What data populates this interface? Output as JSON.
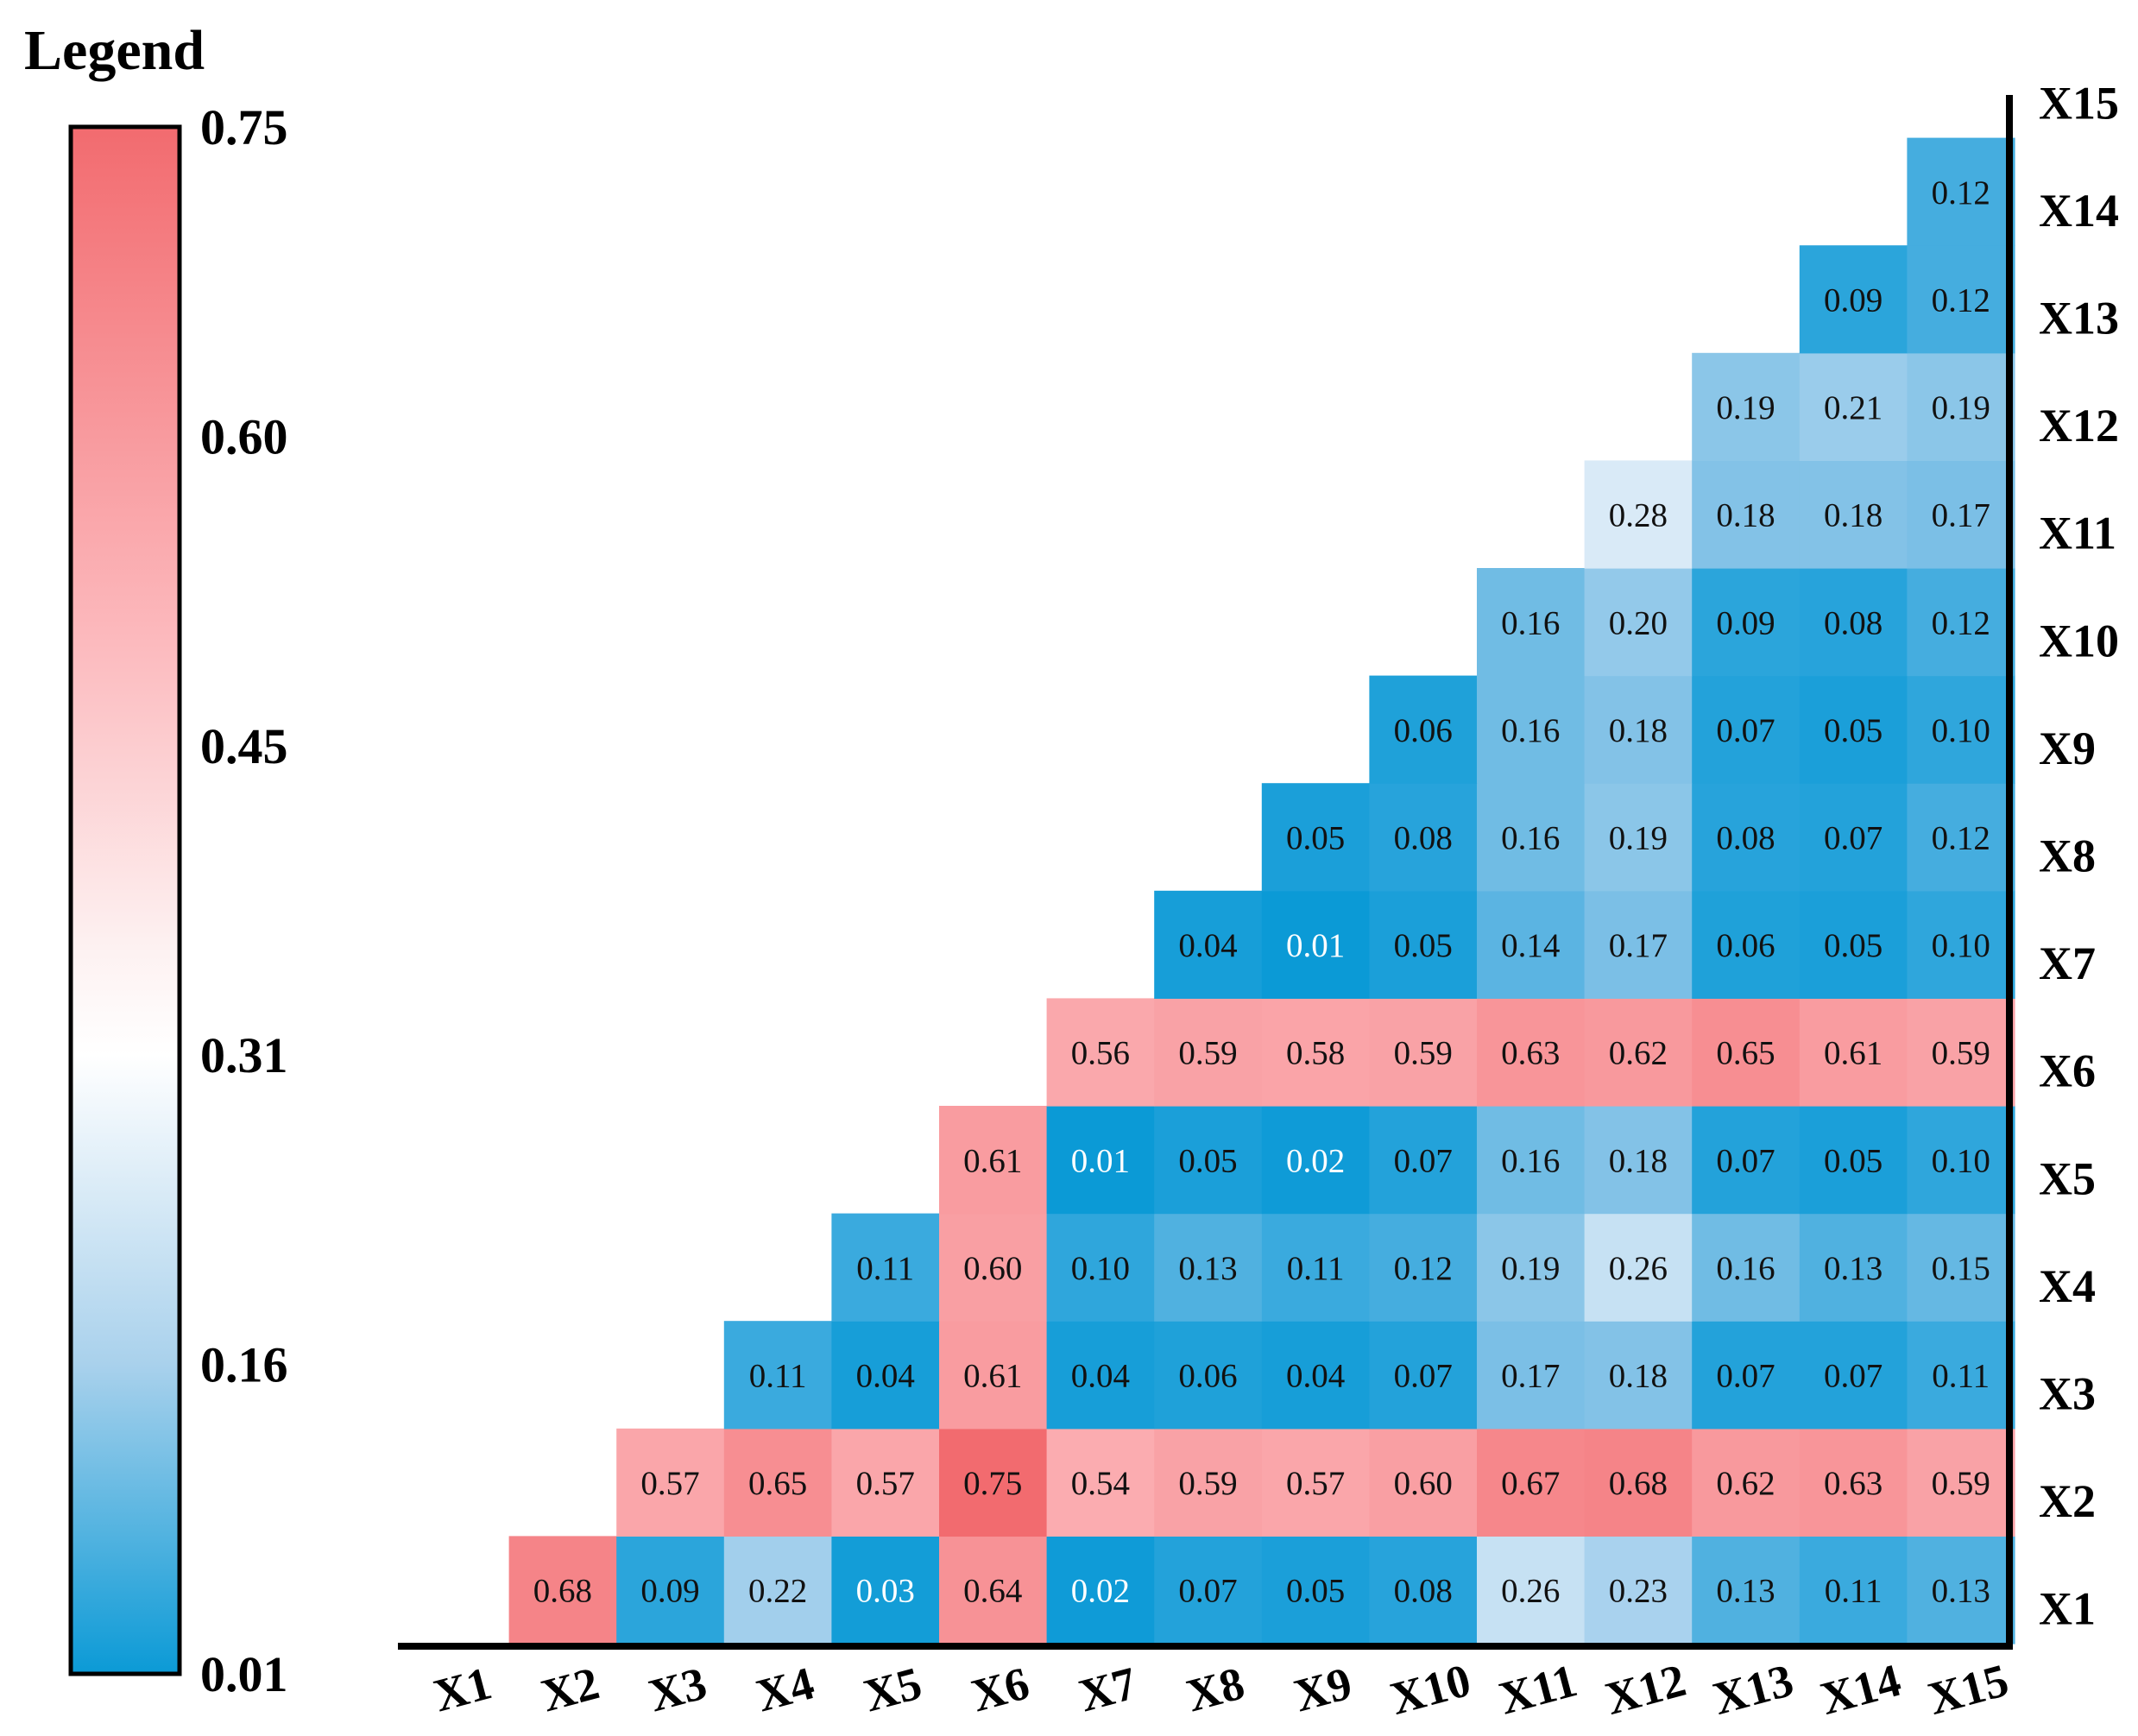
{
  "chart_data": {
    "type": "heatmap",
    "subtype": "lower-triangular interaction matrix",
    "legend_title": "Legend",
    "legend_ticks": [
      "0.75",
      "0.60",
      "0.45",
      "0.31",
      "0.16",
      "0.01"
    ],
    "value_range": [
      0.01,
      0.75
    ],
    "colors": {
      "low": "#0b9ad6",
      "mid": "#ffffff",
      "high": "#f26b6f"
    },
    "x_labels": [
      "X1",
      "X2",
      "X3",
      "X4",
      "X5",
      "X6",
      "X7",
      "X8",
      "X9",
      "X10",
      "X11",
      "X12",
      "X13",
      "X14",
      "X15"
    ],
    "y_labels": [
      "X15",
      "X14",
      "X13",
      "X12",
      "X11",
      "X10",
      "X9",
      "X8",
      "X7",
      "X6",
      "X5",
      "X4",
      "X3",
      "X2",
      "X1"
    ],
    "rows": [
      {
        "row": "X1",
        "values": [
          null,
          "0.68",
          "0.09",
          "0.22",
          "0.03",
          "0.64",
          "0.02",
          "0.07",
          "0.05",
          "0.08",
          "0.26",
          "0.23",
          "0.13",
          "0.11",
          "0.13"
        ]
      },
      {
        "row": "X2",
        "values": [
          null,
          null,
          "0.57",
          "0.65",
          "0.57",
          "0.75",
          "0.54",
          "0.59",
          "0.57",
          "0.60",
          "0.67",
          "0.68",
          "0.62",
          "0.63",
          "0.59"
        ]
      },
      {
        "row": "X3",
        "values": [
          null,
          null,
          null,
          "0.11",
          "0.04",
          "0.61",
          "0.04",
          "0.06",
          "0.04",
          "0.07",
          "0.17",
          "0.18",
          "0.07",
          "0.07",
          "0.11"
        ]
      },
      {
        "row": "X4",
        "values": [
          null,
          null,
          null,
          null,
          "0.11",
          "0.60",
          "0.10",
          "0.13",
          "0.11",
          "0.12",
          "0.19",
          "0.26",
          "0.16",
          "0.13",
          "0.15"
        ]
      },
      {
        "row": "X5",
        "values": [
          null,
          null,
          null,
          null,
          null,
          "0.61",
          "0.01",
          "0.05",
          "0.02",
          "0.07",
          "0.16",
          "0.18",
          "0.07",
          "0.05",
          "0.10"
        ]
      },
      {
        "row": "X6",
        "values": [
          null,
          null,
          null,
          null,
          null,
          null,
          "0.56",
          "0.59",
          "0.58",
          "0.59",
          "0.63",
          "0.62",
          "0.65",
          "0.61",
          "0.59"
        ]
      },
      {
        "row": "X7",
        "values": [
          null,
          null,
          null,
          null,
          null,
          null,
          null,
          "0.04",
          "0.01",
          "0.05",
          "0.14",
          "0.17",
          "0.06",
          "0.05",
          "0.10"
        ]
      },
      {
        "row": "X8",
        "values": [
          null,
          null,
          null,
          null,
          null,
          null,
          null,
          null,
          "0.05",
          "0.08",
          "0.16",
          "0.19",
          "0.08",
          "0.07",
          "0.12"
        ]
      },
      {
        "row": "X9",
        "values": [
          null,
          null,
          null,
          null,
          null,
          null,
          null,
          null,
          null,
          "0.06",
          "0.16",
          "0.18",
          "0.07",
          "0.05",
          "0.10"
        ]
      },
      {
        "row": "X10",
        "values": [
          null,
          null,
          null,
          null,
          null,
          null,
          null,
          null,
          null,
          null,
          "0.16",
          "0.20",
          "0.09",
          "0.08",
          "0.12"
        ]
      },
      {
        "row": "X11",
        "values": [
          null,
          null,
          null,
          null,
          null,
          null,
          null,
          null,
          null,
          null,
          null,
          "0.28",
          "0.18",
          "0.18",
          "0.17"
        ]
      },
      {
        "row": "X12",
        "values": [
          null,
          null,
          null,
          null,
          null,
          null,
          null,
          null,
          null,
          null,
          null,
          null,
          "0.19",
          "0.21",
          "0.19"
        ]
      },
      {
        "row": "X13",
        "values": [
          null,
          null,
          null,
          null,
          null,
          null,
          null,
          null,
          null,
          null,
          null,
          null,
          null,
          "0.09",
          "0.12"
        ]
      },
      {
        "row": "X14",
        "values": [
          null,
          null,
          null,
          null,
          null,
          null,
          null,
          null,
          null,
          null,
          null,
          null,
          null,
          null,
          "0.12"
        ]
      },
      {
        "row": "X15",
        "values": [
          null,
          null,
          null,
          null,
          null,
          null,
          null,
          null,
          null,
          null,
          null,
          null,
          null,
          null,
          null
        ]
      }
    ]
  }
}
